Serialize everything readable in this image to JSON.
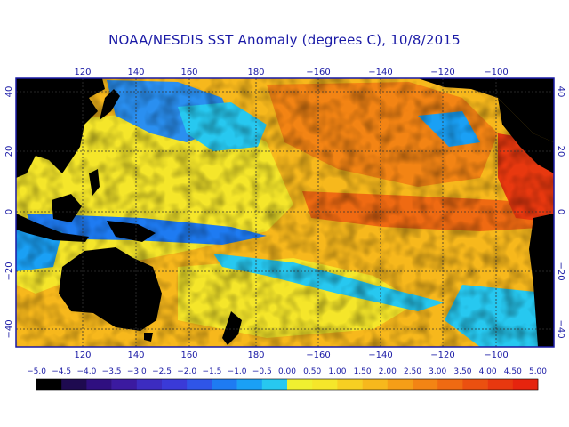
{
  "map": {
    "title": "NOAA/NESDIS SST Anomaly (degrees C), 10/8/2015",
    "lon_ticks": [
      "120",
      "140",
      "160",
      "180",
      "−160",
      "−140",
      "−120",
      "−100"
    ],
    "lat_ticks": [
      "40",
      "20",
      "0",
      "−20",
      "−40"
    ],
    "colorbar": {
      "labels": [
        "−5.0",
        "−4.5",
        "−4.0",
        "−3.5",
        "−3.0",
        "−2.5",
        "−2.0",
        "−1.5",
        "−1.0",
        "−0.5",
        "0.00",
        "0.50",
        "1.00",
        "1.50",
        "2.00",
        "2.50",
        "3.00",
        "3.50",
        "4.00",
        "4.50",
        "5.00"
      ],
      "colors": [
        "#000000",
        "#1e0a50",
        "#2f0f80",
        "#3b1aa0",
        "#3c2cc0",
        "#3a3ad8",
        "#2f55e8",
        "#1e7bf2",
        "#1aa0f5",
        "#27c8f0",
        "#f0f030",
        "#f5e62a",
        "#f7cf22",
        "#f7b81c",
        "#f59e17",
        "#f38414",
        "#ef6a12",
        "#eb5010",
        "#e8380f",
        "#e6240e"
      ]
    },
    "colors": {
      "land": "#000000",
      "border": "#1a1aa6",
      "grid": "#333333",
      "warm_base": "#f7b81c",
      "warm_strong": "#ef6a12",
      "neutral": "#f5e62a",
      "cool": "#2a8ff0",
      "cool_light": "#27c8f0"
    }
  }
}
